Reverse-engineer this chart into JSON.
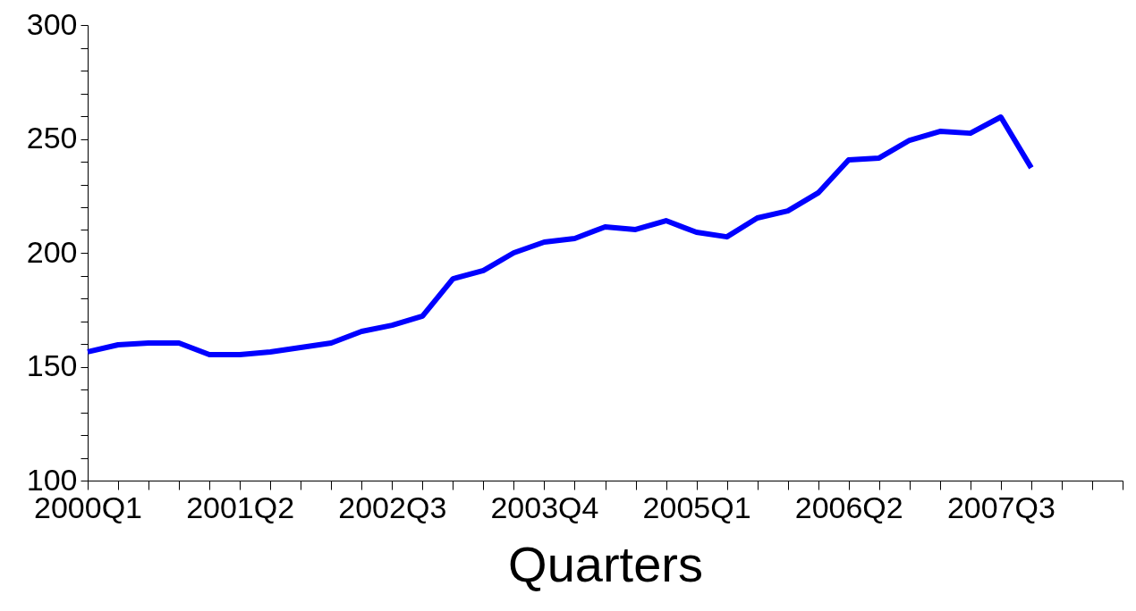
{
  "chart_data": {
    "type": "line",
    "xlabel": "Quarters",
    "categories": [
      "2000Q1",
      null,
      null,
      null,
      null,
      "2001Q2",
      null,
      null,
      null,
      null,
      "2002Q3",
      null,
      null,
      null,
      null,
      "2003Q4",
      null,
      null,
      null,
      null,
      "2005Q1",
      null,
      null,
      null,
      null,
      "2006Q2",
      null,
      null,
      null,
      null,
      "2007Q3",
      null,
      null,
      null,
      null
    ],
    "series": [
      {
        "color": "#0000ff",
        "values": [
          156.5,
          159.6,
          160.4,
          160.4,
          155.3,
          155.3,
          156.5,
          158.4,
          160.4,
          165.5,
          168.2,
          172.2,
          188.6,
          192.2,
          200,
          204.7,
          206.3,
          211.4,
          210.2,
          214.1,
          209,
          207,
          215.3,
          218.4,
          226.3,
          240.8,
          241.6,
          249.4,
          253.3,
          252.5,
          259.6,
          237.3,
          null,
          null,
          null
        ]
      }
    ],
    "ylim": [
      100,
      300
    ],
    "yticks": [
      100,
      {
        "value": 110,
        "label": null
      },
      {
        "value": 120,
        "label": null
      },
      {
        "value": 130,
        "label": null
      },
      {
        "value": 140,
        "label": null
      },
      150,
      {
        "value": 160,
        "label": null
      },
      {
        "value": 170,
        "label": null
      },
      {
        "value": 180,
        "label": null
      },
      {
        "value": 190,
        "label": null
      },
      200,
      {
        "value": 210,
        "label": null
      },
      {
        "value": 220,
        "label": null
      },
      {
        "value": 230,
        "label": null
      },
      {
        "value": 240,
        "label": null
      },
      250,
      {
        "value": 260,
        "label": null
      },
      {
        "value": 270,
        "label": null
      },
      {
        "value": 280,
        "label": null
      },
      {
        "value": 290,
        "label": null
      },
      300
    ]
  }
}
